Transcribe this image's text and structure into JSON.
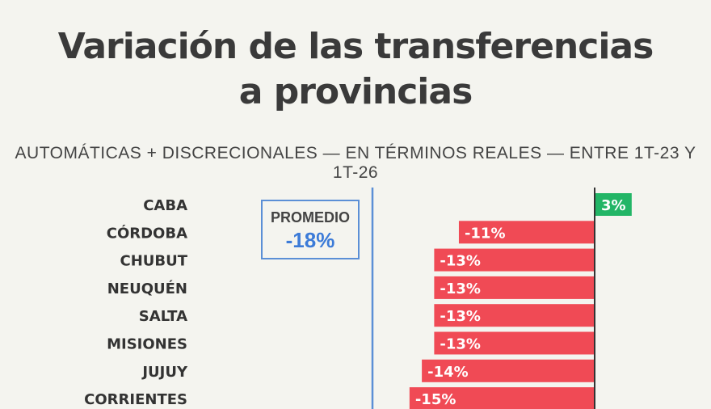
{
  "title_line1": "Variación de las transferencias",
  "title_line2": "a provincias",
  "subtitle": "AUTOMÁTICAS + DISCRECIONALES — EN TÉRMINOS REALES — ENTRE 1T-23 Y 1T-26",
  "average": {
    "label": "PROMEDIO",
    "value": "-18%",
    "numeric": -18
  },
  "colors": {
    "positive": "#22b566",
    "negative": "#f04a55",
    "average_line": "#5b8fd6",
    "zero_line": "#333333"
  },
  "chart_data": {
    "type": "bar",
    "orientation": "horizontal",
    "categories": [
      "CABA",
      "CÓRDOBA",
      "CHUBUT",
      "NEUQUÉN",
      "SALTA",
      "MISIONES",
      "JUJUY",
      "CORRIENTES"
    ],
    "values": [
      3,
      -11,
      -13,
      -13,
      -13,
      -13,
      -14,
      -15
    ],
    "value_labels": [
      "3%",
      "-11%",
      "-13%",
      "-13%",
      "-13%",
      "-13%",
      "-14%",
      "-15%"
    ],
    "reference_line": -18,
    "xlim": [
      -18,
      3
    ],
    "grid": false
  }
}
